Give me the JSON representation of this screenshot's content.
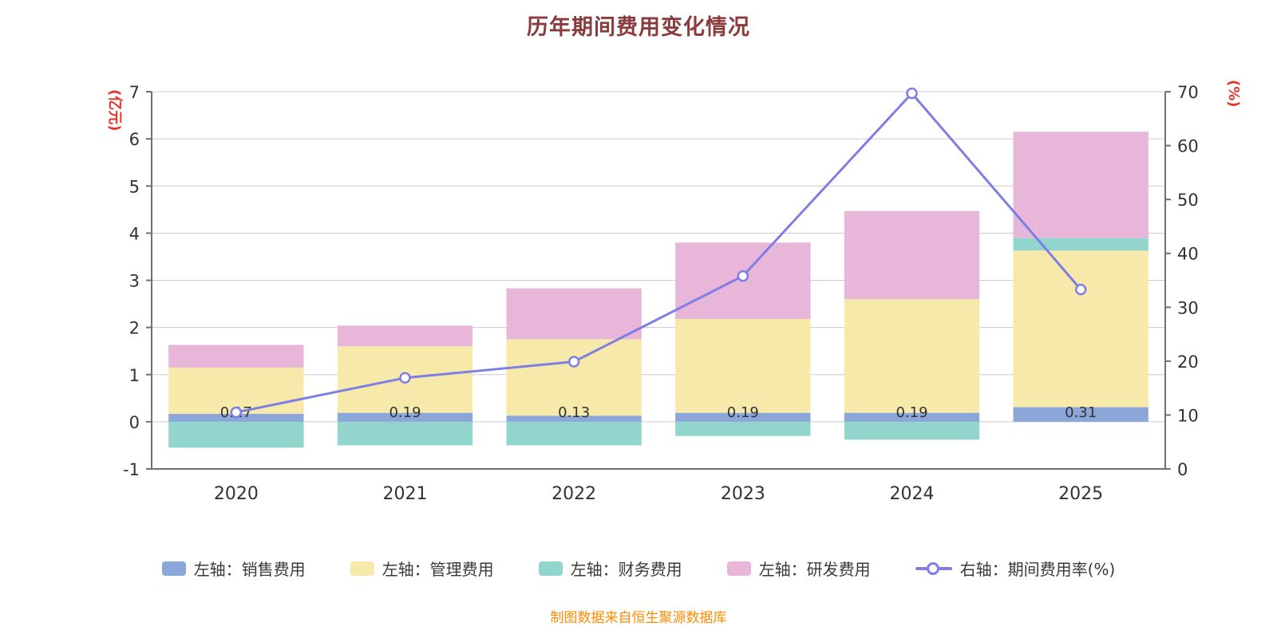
{
  "title": "历年期间费用变化情况",
  "footer": "制图数据来自恒生聚源数据库",
  "chart_data": {
    "type": "bar",
    "title": "历年期间费用变化情况",
    "categories": [
      "2020",
      "2021",
      "2022",
      "2023",
      "2024",
      "2025"
    ],
    "series": [
      {
        "name": "左轴：销售费用",
        "kind": "bar",
        "color": "#8ba7d9",
        "values": [
          0.17,
          0.19,
          0.13,
          0.19,
          0.19,
          0.31
        ],
        "labels": [
          "0.17",
          "0.19",
          "0.13",
          "0.19",
          "0.19",
          "0.31"
        ]
      },
      {
        "name": "左轴：管理费用",
        "kind": "bar",
        "color": "#f7e9a9",
        "values": [
          0.98,
          1.41,
          1.62,
          1.99,
          2.41,
          3.32
        ]
      },
      {
        "name": "左轴：财务费用",
        "kind": "bar",
        "color": "#92d5cd",
        "values": [
          -0.55,
          -0.5,
          -0.5,
          -0.3,
          -0.38,
          0.27
        ]
      },
      {
        "name": "左轴：研发费用",
        "kind": "bar",
        "color": "#e7b6d8",
        "values": [
          0.48,
          0.44,
          1.08,
          1.62,
          1.87,
          2.25
        ]
      },
      {
        "name": "右轴：期间费用率(%)",
        "kind": "line",
        "color": "#7e7ee4",
        "values": [
          10.5,
          16.9,
          19.9,
          35.8,
          69.7,
          33.3
        ]
      }
    ],
    "left_axis": {
      "unit": "(亿元)",
      "min": -1,
      "max": 7,
      "ticks": [
        -1,
        0,
        1,
        2,
        3,
        4,
        5,
        6,
        7
      ]
    },
    "right_axis": {
      "unit": "(%)",
      "min": 0,
      "max": 70,
      "ticks": [
        0,
        10,
        20,
        30,
        40,
        50,
        60,
        70
      ]
    },
    "legend_position": "bottom",
    "grid": true,
    "colors": {
      "title": "#8a3b3e",
      "axis_unit": "#e5342c",
      "tick_label": "#333333",
      "gridline": "#cccccc",
      "axis_line": "#707070",
      "source_note": "#ff8c00"
    }
  }
}
